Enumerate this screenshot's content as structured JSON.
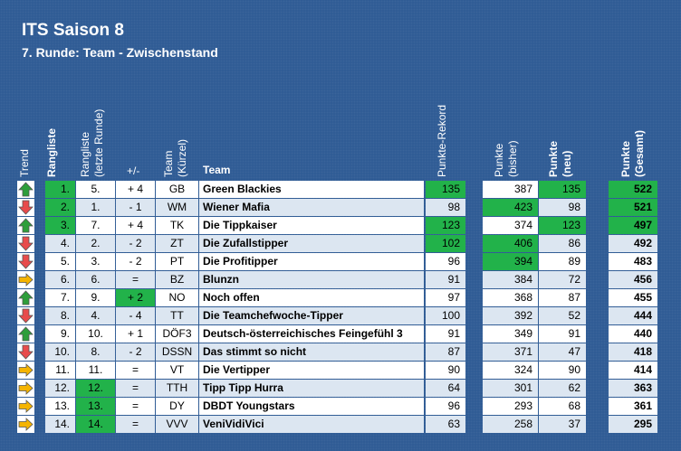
{
  "title": "ITS Saison 8",
  "subtitle": "7. Runde: Team - Zwischenstand",
  "headers": {
    "trend": "Trend",
    "rangliste": "Rangliste",
    "rangliste_letzte": "Rangliste",
    "rangliste_letzte_2": "(letzte Runde)",
    "diff": "+/-",
    "team_kurz": "Team",
    "team_kurz_2": "(Kürzel)",
    "team": "Team",
    "rekord": "Punkte-Rekord",
    "bisher": "Punkte",
    "bisher_2": "(bisher)",
    "neu": "Punkte",
    "neu_2": "(neu)",
    "gesamt": "Punkte",
    "gesamt_2": "(Gesamt)"
  },
  "colors": {
    "up": "#2e9e3a",
    "down": "#e84b4b",
    "same": "#f5b400",
    "highlight": "#22b24a",
    "alt_row": "#dce6f1",
    "row": "#ffffff"
  },
  "rows": [
    {
      "trend": "up",
      "rank": "1.",
      "last": "5.",
      "diff": "+ 4",
      "code": "GB",
      "team": "Green Blackies",
      "rekord": "135",
      "bisher": "387",
      "neu": "135",
      "gesamt": "522",
      "hl": [
        "rank",
        "rekord",
        "neu",
        "gesamt"
      ]
    },
    {
      "trend": "down",
      "rank": "2.",
      "last": "1.",
      "diff": "- 1",
      "code": "WM",
      "team": "Wiener Mafia",
      "rekord": "98",
      "bisher": "423",
      "neu": "98",
      "gesamt": "521",
      "hl": [
        "rank",
        "bisher",
        "gesamt"
      ]
    },
    {
      "trend": "up",
      "rank": "3.",
      "last": "7.",
      "diff": "+ 4",
      "code": "TK",
      "team": "Die Tippkaiser",
      "rekord": "123",
      "bisher": "374",
      "neu": "123",
      "gesamt": "497",
      "hl": [
        "rank",
        "rekord",
        "neu",
        "gesamt"
      ]
    },
    {
      "trend": "down",
      "rank": "4.",
      "last": "2.",
      "diff": "- 2",
      "code": "ZT",
      "team": "Die Zufallstipper",
      "rekord": "102",
      "bisher": "406",
      "neu": "86",
      "gesamt": "492",
      "hl": [
        "rekord",
        "bisher"
      ]
    },
    {
      "trend": "down",
      "rank": "5.",
      "last": "3.",
      "diff": "- 2",
      "code": "PT",
      "team": "Die Profitipper",
      "rekord": "96",
      "bisher": "394",
      "neu": "89",
      "gesamt": "483",
      "hl": [
        "bisher"
      ]
    },
    {
      "trend": "same",
      "rank": "6.",
      "last": "6.",
      "diff": "=",
      "code": "BZ",
      "team": "Blunzn",
      "rekord": "91",
      "bisher": "384",
      "neu": "72",
      "gesamt": "456",
      "hl": []
    },
    {
      "trend": "up",
      "rank": "7.",
      "last": "9.",
      "diff": "+ 2",
      "code": "NO",
      "team": "Noch offen",
      "rekord": "97",
      "bisher": "368",
      "neu": "87",
      "gesamt": "455",
      "hl": [
        "diff"
      ]
    },
    {
      "trend": "down",
      "rank": "8.",
      "last": "4.",
      "diff": "- 4",
      "code": "TT",
      "team": "Die Teamchefwoche-Tipper",
      "rekord": "100",
      "bisher": "392",
      "neu": "52",
      "gesamt": "444",
      "hl": []
    },
    {
      "trend": "up",
      "rank": "9.",
      "last": "10.",
      "diff": "+ 1",
      "code": "DÖF3",
      "team": "Deutsch-österreichisches Feingefühl 3",
      "rekord": "91",
      "bisher": "349",
      "neu": "91",
      "gesamt": "440",
      "hl": []
    },
    {
      "trend": "down",
      "rank": "10.",
      "last": "8.",
      "diff": "- 2",
      "code": "DSSN",
      "team": "Das stimmt so nicht",
      "rekord": "87",
      "bisher": "371",
      "neu": "47",
      "gesamt": "418",
      "hl": []
    },
    {
      "trend": "same",
      "rank": "11.",
      "last": "11.",
      "diff": "=",
      "code": "VT",
      "team": "Die Vertipper",
      "rekord": "90",
      "bisher": "324",
      "neu": "90",
      "gesamt": "414",
      "hl": []
    },
    {
      "trend": "same",
      "rank": "12.",
      "last": "12.",
      "diff": "=",
      "code": "TTH",
      "team": "Tipp Tipp Hurra",
      "rekord": "64",
      "bisher": "301",
      "neu": "62",
      "gesamt": "363",
      "hl": [
        "last"
      ]
    },
    {
      "trend": "same",
      "rank": "13.",
      "last": "13.",
      "diff": "=",
      "code": "DY",
      "team": "DBDT Youngstars",
      "rekord": "96",
      "bisher": "293",
      "neu": "68",
      "gesamt": "361",
      "hl": [
        "last"
      ]
    },
    {
      "trend": "same",
      "rank": "14.",
      "last": "14.",
      "diff": "=",
      "code": "VVV",
      "team": "VeniVidiVici",
      "rekord": "63",
      "bisher": "258",
      "neu": "37",
      "gesamt": "295",
      "hl": [
        "last"
      ]
    }
  ]
}
